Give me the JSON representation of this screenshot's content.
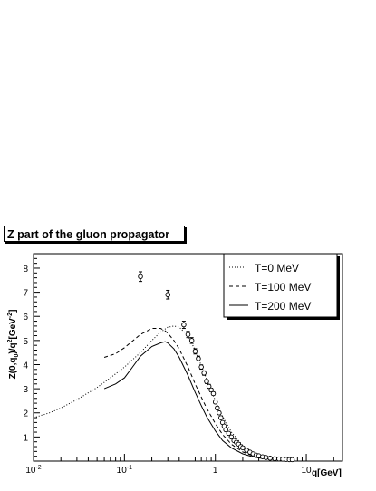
{
  "chart_data": {
    "type": "line",
    "title": "Z part of the gluon propagator",
    "xlabel": "q[GeV]",
    "ylabel_main": "Z(0,q",
    "ylabel_sub": "0",
    "ylabel_rest": ")/q",
    "ylabel_sup": "2",
    "ylabel_unit": "[GeV",
    "ylabel_unit_sup": "-2",
    "ylabel_close": "]",
    "x_scale": "log",
    "xlim": [
      0.01,
      25
    ],
    "ylim": [
      0,
      8.6
    ],
    "x_ticks": [
      {
        "value": 0.01,
        "base": "10",
        "exp": "-2"
      },
      {
        "value": 0.1,
        "base": "10",
        "exp": "-1"
      },
      {
        "value": 1,
        "base": "1",
        "exp": ""
      },
      {
        "value": 10,
        "base": "10",
        "exp": ""
      }
    ],
    "y_ticks": [
      1,
      2,
      3,
      4,
      5,
      6,
      7,
      8
    ],
    "legend_position": "top-right",
    "grid": false,
    "series": [
      {
        "name": "T=0 MeV",
        "style": "dotted",
        "x": [
          0.01,
          0.015,
          0.02,
          0.03,
          0.05,
          0.07,
          0.1,
          0.15,
          0.2,
          0.25,
          0.3,
          0.35,
          0.4,
          0.5,
          0.6,
          0.7,
          0.8,
          1.0,
          1.2,
          1.5,
          2.0,
          2.5,
          3.0,
          4.0,
          5.0,
          6.0,
          7.0
        ],
        "y": [
          1.8,
          2.0,
          2.2,
          2.55,
          3.05,
          3.45,
          3.9,
          4.5,
          5.0,
          5.35,
          5.55,
          5.6,
          5.55,
          5.2,
          4.6,
          3.95,
          3.4,
          2.5,
          1.85,
          1.2,
          0.65,
          0.4,
          0.27,
          0.15,
          0.1,
          0.07,
          0.06
        ]
      },
      {
        "name": "T=100 MeV",
        "style": "dashed",
        "x": [
          0.06,
          0.08,
          0.1,
          0.12,
          0.15,
          0.2,
          0.25,
          0.28,
          0.3,
          0.35,
          0.4,
          0.5,
          0.6,
          0.7,
          0.8,
          1.0,
          1.2,
          1.5,
          2.0,
          2.5,
          3.0,
          4.0,
          5.0,
          6.0,
          7.0
        ],
        "y": [
          4.3,
          4.45,
          4.7,
          4.95,
          5.25,
          5.5,
          5.5,
          5.4,
          5.3,
          5.0,
          4.65,
          3.9,
          3.2,
          2.65,
          2.2,
          1.55,
          1.1,
          0.7,
          0.38,
          0.24,
          0.16,
          0.09,
          0.07,
          0.05,
          0.04
        ]
      },
      {
        "name": "T=200 MeV",
        "style": "solid",
        "x": [
          0.06,
          0.08,
          0.1,
          0.12,
          0.15,
          0.2,
          0.25,
          0.28,
          0.3,
          0.35,
          0.4,
          0.5,
          0.6,
          0.7,
          0.8,
          1.0,
          1.2,
          1.5,
          2.0,
          2.5,
          3.0,
          4.0,
          5.0,
          6.0,
          7.0
        ],
        "y": [
          3.0,
          3.2,
          3.45,
          3.85,
          4.35,
          4.75,
          4.9,
          4.95,
          4.9,
          4.65,
          4.3,
          3.55,
          2.85,
          2.3,
          1.85,
          1.25,
          0.85,
          0.55,
          0.3,
          0.19,
          0.13,
          0.08,
          0.05,
          0.04,
          0.03
        ]
      },
      {
        "name": "",
        "style": "markers",
        "x": [
          0.15,
          0.3,
          0.45,
          0.5,
          0.55,
          0.6,
          0.65,
          0.7,
          0.75,
          0.8,
          0.85,
          0.9,
          0.95,
          1.0,
          1.05,
          1.1,
          1.15,
          1.2,
          1.25,
          1.3,
          1.4,
          1.5,
          1.6,
          1.7,
          1.8,
          1.9,
          2.0,
          2.2,
          2.4,
          2.6,
          2.8,
          3.0,
          3.3,
          3.6,
          4.0,
          4.5,
          5.0,
          5.5,
          6.0,
          6.5,
          7.0
        ],
        "y": [
          7.65,
          6.9,
          5.65,
          5.25,
          5.0,
          4.55,
          4.25,
          3.9,
          3.65,
          3.3,
          3.1,
          2.95,
          2.8,
          2.45,
          2.2,
          2.0,
          1.8,
          1.6,
          1.45,
          1.3,
          1.15,
          1.0,
          0.85,
          0.78,
          0.7,
          0.6,
          0.55,
          0.45,
          0.37,
          0.3,
          0.25,
          0.22,
          0.18,
          0.15,
          0.12,
          0.1,
          0.09,
          0.08,
          0.07,
          0.06,
          0.06
        ],
        "err": [
          0.2,
          0.18,
          0.15,
          0.13,
          0.12,
          0.11,
          0.1,
          0.09,
          0.09,
          0.08,
          0.08,
          0.07,
          0.07,
          0.06,
          0.06,
          0.05,
          0.05,
          0.05,
          0.04,
          0.04,
          0.04,
          0.03,
          0.03,
          0.03,
          0.03,
          0.02,
          0.02,
          0.02,
          0.02,
          0.02,
          0.02,
          0.02,
          0.01,
          0.01,
          0.01,
          0.01,
          0.01,
          0.01,
          0.01,
          0.01,
          0.01
        ]
      }
    ]
  }
}
